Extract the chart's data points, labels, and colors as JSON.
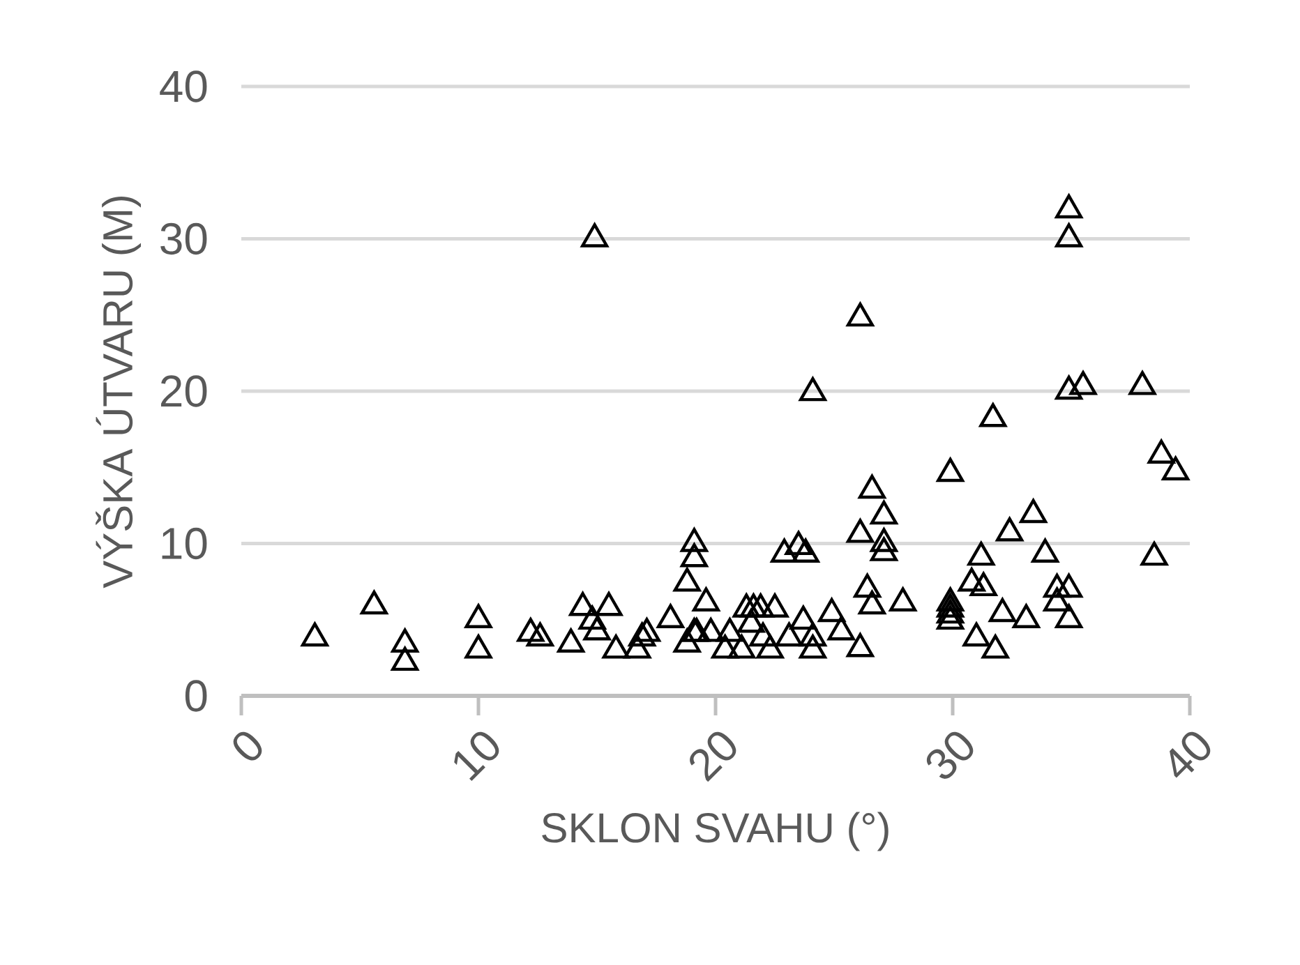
{
  "chart_data": {
    "type": "scatter",
    "xlabel": "SKLON SVAHU (°)",
    "ylabel": "VÝŠKA ÚTVARU (M)",
    "xlim": [
      0,
      40
    ],
    "ylim": [
      0,
      40
    ],
    "xticks": [
      0,
      10,
      20,
      30,
      40
    ],
    "yticks": [
      0,
      10,
      20,
      30,
      40
    ],
    "grid": "y",
    "marker": "triangle",
    "series": [
      {
        "color": "#000000",
        "x": [
          3.1,
          5.6,
          6.9,
          6.9,
          10.0,
          10.0,
          12.2,
          12.6,
          13.9,
          14.4,
          14.8,
          15.0,
          14.9,
          15.5,
          15.8,
          16.7,
          16.9,
          17.1,
          18.1,
          18.8,
          18.8,
          19.1,
          19.1,
          19.1,
          19.2,
          19.6,
          19.8,
          20.4,
          20.6,
          21.1,
          21.3,
          21.6,
          21.5,
          21.9,
          22.0,
          22.3,
          22.5,
          22.9,
          23.1,
          23.5,
          23.8,
          23.7,
          24.1,
          24.1,
          24.1,
          24.9,
          25.3,
          26.1,
          26.1,
          26.1,
          26.4,
          26.6,
          26.6,
          27.1,
          27.1,
          27.1,
          27.9,
          29.9,
          29.9,
          29.9,
          29.9,
          29.9,
          30.8,
          31.0,
          31.2,
          31.3,
          31.7,
          31.8,
          32.1,
          32.4,
          33.1,
          33.4,
          33.9,
          34.4,
          34.4,
          34.9,
          34.9,
          34.9,
          34.9,
          34.9,
          35.5,
          38.0,
          38.5,
          38.8,
          39.4
        ],
        "values": [
          3.8,
          5.9,
          3.4,
          2.2,
          5.0,
          3.0,
          4.1,
          3.8,
          3.4,
          5.8,
          4.9,
          4.2,
          30.0,
          5.8,
          3.0,
          3.0,
          3.8,
          4.1,
          5.0,
          7.4,
          3.4,
          10.0,
          9.0,
          4.1,
          4.1,
          6.1,
          4.1,
          3.0,
          4.1,
          3.0,
          5.7,
          5.7,
          4.7,
          5.7,
          3.8,
          3.0,
          5.7,
          9.3,
          3.8,
          9.8,
          9.3,
          4.9,
          19.9,
          3.8,
          3.0,
          5.4,
          4.2,
          3.1,
          10.6,
          24.8,
          7.0,
          5.9,
          13.5,
          11.8,
          10.0,
          9.4,
          6.1,
          14.6,
          6.1,
          5.7,
          5.3,
          4.9,
          7.4,
          3.8,
          9.1,
          7.1,
          18.2,
          3.0,
          5.4,
          10.7,
          5.0,
          11.9,
          9.3,
          7.0,
          6.1,
          7.0,
          5.0,
          20.0,
          31.9,
          30.0,
          20.3,
          20.3,
          9.1,
          15.8,
          14.7
        ]
      }
    ]
  }
}
